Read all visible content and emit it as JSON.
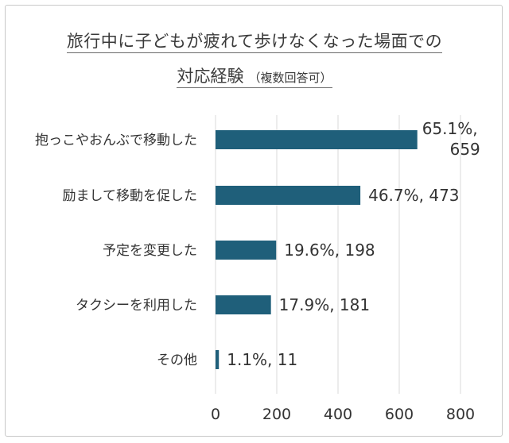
{
  "chart_data": {
    "type": "bar",
    "orientation": "horizontal",
    "title": "旅行中に子どもが疲れて歩けなくなった場面での",
    "title_line2": "対応経験",
    "title_note": "（複数回答可）",
    "categories": [
      "抱っこやおんぶで移動した",
      "励まして移動を促した",
      "予定を変更した",
      "タクシーを利用した",
      "その他"
    ],
    "values": [
      659,
      473,
      198,
      181,
      11
    ],
    "percents": [
      "65.1%",
      "46.7%",
      "19.6%",
      "17.9%",
      "1.1%"
    ],
    "data_labels": [
      "65.1%,\n659",
      "46.7%, 473",
      "19.6%, 198",
      "17.9%, 181",
      "1.1%, 11"
    ],
    "xlim": [
      0,
      800
    ],
    "xticks": [
      0,
      200,
      400,
      600,
      800
    ],
    "grid": true,
    "legend": "none",
    "bar_color": "#1f5f7a",
    "grid_color": "#d9d9d9"
  }
}
